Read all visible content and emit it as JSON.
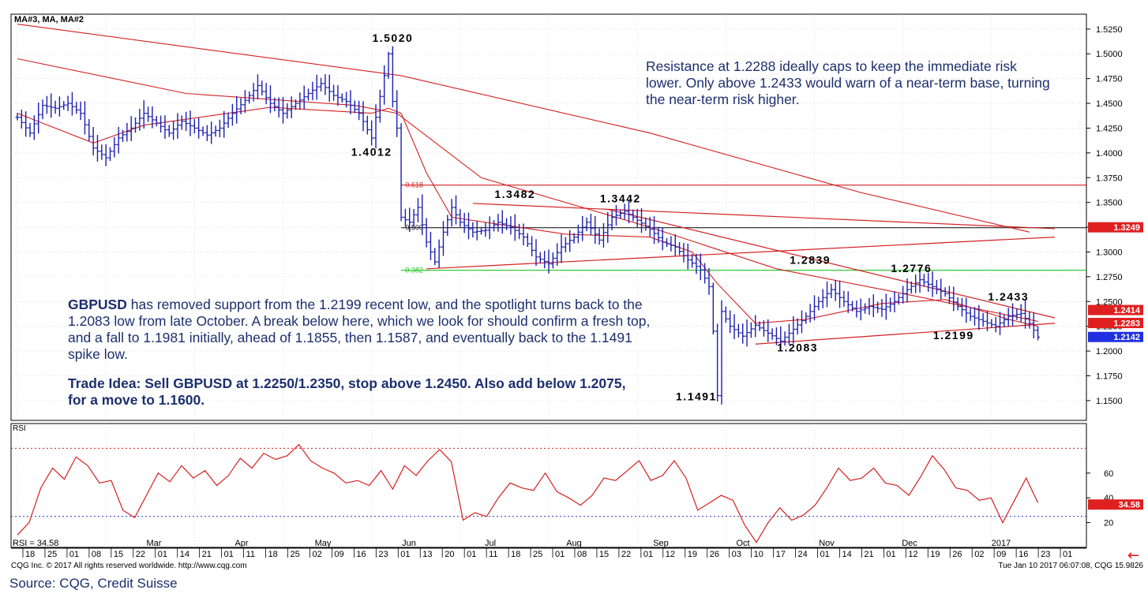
{
  "chart_data": [
    {
      "type": "candlestick",
      "title": "MA#3, MA, MA#2",
      "symbol": "GBPUSD",
      "ylim": [
        1.13,
        1.54
      ],
      "y_ticks": [
        1.525,
        1.5,
        1.475,
        1.45,
        1.425,
        1.4,
        1.375,
        1.35,
        1.325,
        1.3,
        1.275,
        1.25,
        1.225,
        1.2,
        1.175,
        1.15
      ],
      "y_tick_labels": [
        "1.5250",
        "1.5000",
        "1.4750",
        "1.4500",
        "1.4250",
        "1.4000",
        "1.3750",
        "1.3500",
        "1.3250",
        "1.3000",
        "1.2750",
        "1.2500",
        "1.2250",
        "1.2000",
        "1.1750",
        "1.1500"
      ],
      "price_series": [
        [
          0,
          1.436
        ],
        [
          3,
          1.42
        ],
        [
          6,
          1.448
        ],
        [
          9,
          1.445
        ],
        [
          12,
          1.45
        ],
        [
          15,
          1.44
        ],
        [
          18,
          1.405
        ],
        [
          21,
          1.395
        ],
        [
          24,
          1.415
        ],
        [
          27,
          1.425
        ],
        [
          30,
          1.44
        ],
        [
          33,
          1.43
        ],
        [
          36,
          1.42
        ],
        [
          39,
          1.432
        ],
        [
          42,
          1.425
        ],
        [
          45,
          1.418
        ],
        [
          48,
          1.425
        ],
        [
          51,
          1.44
        ],
        [
          54,
          1.453
        ],
        [
          57,
          1.468
        ],
        [
          60,
          1.45
        ],
        [
          63,
          1.44
        ],
        [
          66,
          1.45
        ],
        [
          69,
          1.46
        ],
        [
          72,
          1.47
        ],
        [
          75,
          1.458
        ],
        [
          78,
          1.452
        ],
        [
          81,
          1.44
        ],
        [
          84,
          1.415
        ],
        [
          87,
          1.478
        ],
        [
          88,
          1.5
        ],
        [
          89,
          1.452
        ],
        [
          90,
          1.425
        ],
        [
          91,
          1.335
        ],
        [
          93,
          1.33
        ],
        [
          95,
          1.345
        ],
        [
          97,
          1.31
        ],
        [
          99,
          1.29
        ],
        [
          101,
          1.32
        ],
        [
          103,
          1.345
        ],
        [
          105,
          1.33
        ],
        [
          108,
          1.32
        ],
        [
          111,
          1.322
        ],
        [
          114,
          1.33
        ],
        [
          117,
          1.325
        ],
        [
          120,
          1.315
        ],
        [
          123,
          1.295
        ],
        [
          126,
          1.288
        ],
        [
          129,
          1.305
        ],
        [
          132,
          1.315
        ],
        [
          135,
          1.33
        ],
        [
          138,
          1.312
        ],
        [
          141,
          1.335
        ],
        [
          144,
          1.341
        ],
        [
          147,
          1.332
        ],
        [
          150,
          1.323
        ],
        [
          153,
          1.31
        ],
        [
          156,
          1.305
        ],
        [
          159,
          1.292
        ],
        [
          162,
          1.282
        ],
        [
          164,
          1.265
        ],
        [
          165,
          1.22
        ],
        [
          166,
          1.155
        ],
        [
          167,
          1.24
        ],
        [
          169,
          1.225
        ],
        [
          172,
          1.215
        ],
        [
          175,
          1.226
        ],
        [
          178,
          1.218
        ],
        [
          181,
          1.21
        ],
        [
          184,
          1.222
        ],
        [
          187,
          1.235
        ],
        [
          190,
          1.25
        ],
        [
          193,
          1.262
        ],
        [
          196,
          1.25
        ],
        [
          199,
          1.24
        ],
        [
          202,
          1.245
        ],
        [
          205,
          1.242
        ],
        [
          208,
          1.25
        ],
        [
          211,
          1.262
        ],
        [
          214,
          1.272
        ],
        [
          217,
          1.265
        ],
        [
          220,
          1.258
        ],
        [
          223,
          1.245
        ],
        [
          226,
          1.235
        ],
        [
          229,
          1.23
        ],
        [
          232,
          1.225
        ],
        [
          235,
          1.235
        ],
        [
          238,
          1.238
        ],
        [
          240,
          1.228
        ],
        [
          242,
          1.214
        ]
      ],
      "moving_averages": [
        {
          "name": "MA#3",
          "color": "#d42020",
          "points": [
            [
              0,
              1.53
            ],
            [
              91,
              1.478
            ],
            [
              150,
              1.42
            ],
            [
              200,
              1.36
            ],
            [
              240,
              1.32
            ]
          ]
        },
        {
          "name": "MA",
          "color": "#d42020",
          "points": [
            [
              0,
              1.495
            ],
            [
              40,
              1.46
            ],
            [
              80,
              1.448
            ],
            [
              90,
              1.44
            ],
            [
              110,
              1.375
            ],
            [
              150,
              1.325
            ],
            [
              180,
              1.283
            ],
            [
              210,
              1.258
            ],
            [
              242,
              1.23
            ]
          ]
        },
        {
          "name": "MA#2",
          "color": "#d42020",
          "points": [
            [
              0,
              1.44
            ],
            [
              18,
              1.41
            ],
            [
              30,
              1.428
            ],
            [
              60,
              1.446
            ],
            [
              84,
              1.44
            ],
            [
              88,
              1.445
            ],
            [
              91,
              1.44
            ],
            [
              97,
              1.38
            ],
            [
              103,
              1.335
            ],
            [
              130,
              1.318
            ],
            [
              150,
              1.315
            ],
            [
              160,
              1.3
            ],
            [
              166,
              1.268
            ],
            [
              175,
              1.228
            ],
            [
              187,
              1.232
            ],
            [
              205,
              1.248
            ],
            [
              220,
              1.252
            ],
            [
              235,
              1.232
            ],
            [
              242,
              1.225
            ]
          ]
        }
      ],
      "trend_lines": [
        {
          "from": [
            108,
            1.349
          ],
          "to": [
            246,
            1.3235
          ]
        },
        {
          "from": [
            140,
            1.343
          ],
          "to": [
            246,
            1.2335
          ]
        },
        {
          "from": [
            97,
            1.283
          ],
          "to": [
            246,
            1.315
          ]
        },
        {
          "from": [
            175,
            1.207
          ],
          "to": [
            246,
            1.228
          ]
        }
      ],
      "horizontal_levels": [
        {
          "label": "0.618",
          "value": 1.3675,
          "color": "#d42020"
        },
        {
          "label": "0.500",
          "value": 1.3245,
          "color": "#222222"
        },
        {
          "label": "0.382",
          "value": 1.2815,
          "color": "#1fc21f"
        }
      ],
      "level_labels": [
        {
          "text": "1.5020",
          "x": 89,
          "y": 1.512
        },
        {
          "text": "1.4012",
          "x": 84,
          "y": 1.397
        },
        {
          "text": "1.3482",
          "x": 118,
          "y": 1.3545
        },
        {
          "text": "1.3442",
          "x": 143,
          "y": 1.35
        },
        {
          "text": "1.2839",
          "x": 188,
          "y": 1.288
        },
        {
          "text": "1.2776",
          "x": 212,
          "y": 1.2795
        },
        {
          "text": "1.2433",
          "x": 235,
          "y": 1.2512
        },
        {
          "text": "1.2199",
          "x": 222,
          "y": 1.212
        },
        {
          "text": "1.2083",
          "x": 185,
          "y": 1.1995
        },
        {
          "text": "1.1491",
          "x": 161,
          "y": 1.1505
        }
      ],
      "price_tags": [
        {
          "text": "1.3249",
          "value": 1.3249,
          "color": "#e02020"
        },
        {
          "text": "1.2414",
          "value": 1.2414,
          "color": "#e02020"
        },
        {
          "text": "1.2283",
          "value": 1.2283,
          "color": "#e02020"
        },
        {
          "text": "1.2142",
          "value": 1.2142,
          "color": "#2030e0"
        }
      ],
      "x_labels_months": [
        "Mar",
        "Apr",
        "May",
        "Jun",
        "Jul",
        "Aug",
        "Sep",
        "Oct",
        "Nov",
        "Dec",
        "2017"
      ],
      "x_labels_days": [
        "18",
        "25",
        "01",
        "08",
        "15",
        "22",
        "01",
        "14",
        "21",
        "01",
        "11",
        "18",
        "25",
        "02",
        "09",
        "16",
        "23",
        "01",
        "13",
        "20",
        "01",
        "11",
        "18",
        "25",
        "01",
        "08",
        "15",
        "22",
        "01",
        "12",
        "19",
        "26",
        "03",
        "10",
        "17",
        "24",
        "01",
        "14",
        "21",
        "01",
        "12",
        "19",
        "26",
        "02",
        "09",
        "16",
        "23",
        "01"
      ]
    },
    {
      "type": "line",
      "title": "RSI",
      "current_label": "RSI = 34.58",
      "ylim": [
        0,
        100
      ],
      "y_ticks": [
        20,
        40,
        60
      ],
      "reference_lines": [
        80,
        25
      ],
      "current_value": 34.58,
      "series": [
        {
          "name": "RSI",
          "color": "#d42020",
          "values": [
            10,
            20,
            48,
            64,
            55,
            73,
            66,
            52,
            54,
            30,
            24,
            42,
            60,
            53,
            66,
            56,
            62,
            50,
            58,
            72,
            64,
            76,
            71,
            74,
            83,
            70,
            64,
            60,
            52,
            54,
            50,
            62,
            47,
            66,
            58,
            70,
            79,
            69,
            22,
            28,
            25,
            40,
            52,
            48,
            46,
            60,
            45,
            40,
            34,
            42,
            56,
            54,
            62,
            70,
            54,
            58,
            70,
            56,
            30,
            36,
            42,
            38,
            18,
            4,
            20,
            32,
            22,
            26,
            34,
            48,
            64,
            54,
            56,
            64,
            52,
            50,
            42,
            57,
            74,
            63,
            48,
            46,
            38,
            40,
            20,
            38,
            56,
            36
          ]
        }
      ]
    }
  ],
  "annotations": {
    "right": "Resistance at 1.2288 ideally caps to keep the immediate risk lower.  Only above 1.2433 would warn of a near-term base, turning the near-term risk higher.",
    "left_bold": "GBPUSD",
    "left_rest": " has removed support from the 1.2199 recent low, and the spotlight turns back to the 1.2083 low from late October.  A break below here, which we look for should confirm a fresh top, and a fall to 1.1981 initially, ahead of 1.1855, then 1.1587, and eventually back to the 1.1491 spike low.",
    "trade": "Trade Idea: Sell GBPUSD at 1.2250/1.2350, stop above 1.2450.  Also add below 1.2075, for a move to 1.1600."
  },
  "footer": {
    "copyright": "CQG Inc. © 2017 All rights reserved worldwide. http://www.cqg.com",
    "timestamp": "Tue Jan 10 2017 06:07:08, CQG 15.9826"
  },
  "source": "Source: CQG, Credit Suisse",
  "colors": {
    "bars": "#1b1fb0",
    "lines": "#d42020",
    "grid": "#c8c8c8",
    "text_blue": "#1c2f6e"
  }
}
